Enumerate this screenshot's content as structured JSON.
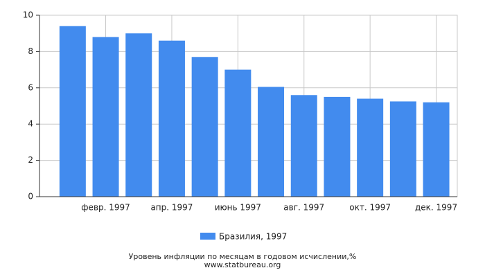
{
  "chart_data": {
    "type": "bar",
    "title": "Уровень инфляции по месяцам в годовом исчислении,%",
    "subtitle": "www.statbureau.org",
    "categories": [
      null,
      "февр. 1997",
      null,
      "апр. 1997",
      null,
      "июнь 1997",
      null,
      "авг. 1997",
      null,
      "окт. 1997",
      null,
      "дек. 1997"
    ],
    "series": [
      {
        "name": "Бразилия, 1997",
        "color": "#428bee",
        "values": [
          9.4,
          8.8,
          9.0,
          8.6,
          7.7,
          7.0,
          6.05,
          5.6,
          5.5,
          5.4,
          5.25,
          5.2
        ]
      }
    ],
    "ylim": [
      0,
      10
    ],
    "yticks": [
      0,
      2,
      4,
      6,
      8,
      10
    ],
    "grid": true
  }
}
